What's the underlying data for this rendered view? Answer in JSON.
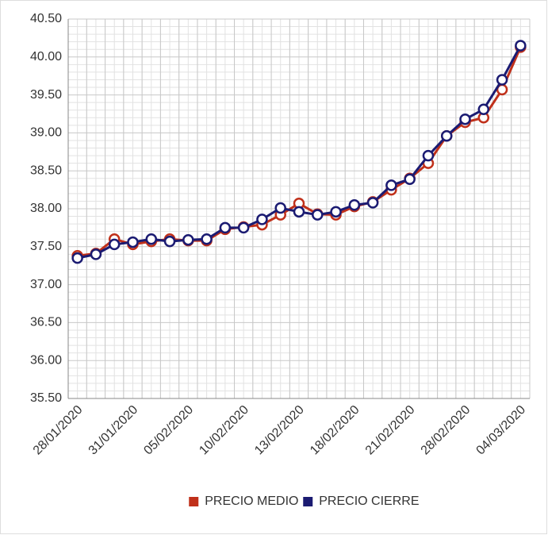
{
  "chart_data": {
    "type": "line",
    "categories": [
      "28/01/2020",
      null,
      null,
      "31/01/2020",
      null,
      null,
      "05/02/2020",
      null,
      null,
      "10/02/2020",
      null,
      null,
      "13/02/2020",
      null,
      null,
      "18/02/2020",
      null,
      null,
      "21/02/2020",
      null,
      null,
      "28/02/2020",
      null,
      null,
      "04/03/2020"
    ],
    "series": [
      {
        "name": "PRECIO MEDIO",
        "color": "#c0301a",
        "values": [
          37.38,
          37.41,
          37.6,
          37.53,
          37.57,
          37.6,
          37.58,
          37.58,
          37.73,
          37.76,
          37.79,
          37.92,
          38.07,
          37.93,
          37.92,
          38.03,
          38.09,
          38.25,
          38.4,
          38.6,
          38.96,
          39.14,
          39.2,
          39.57,
          40.13
        ]
      },
      {
        "name": "PRECIO CIERRE",
        "color": "#1b1b72",
        "values": [
          37.35,
          37.4,
          37.53,
          37.56,
          37.6,
          37.57,
          37.59,
          37.6,
          37.75,
          37.75,
          37.86,
          38.01,
          37.96,
          37.92,
          37.96,
          38.05,
          38.08,
          38.31,
          38.39,
          38.7,
          38.96,
          39.18,
          39.31,
          39.7,
          40.15
        ]
      }
    ],
    "ylim": [
      35.5,
      40.5
    ],
    "yticks": [
      {
        "value": 35.5,
        "label": "35.50"
      },
      {
        "value": 36,
        "label": "36.00"
      },
      {
        "value": 36.5,
        "label": "36.50"
      },
      {
        "value": 37,
        "label": "37.00"
      },
      {
        "value": 37.5,
        "label": "37.50"
      },
      {
        "value": 38,
        "label": "38.00"
      },
      {
        "value": 38.5,
        "label": "38.50"
      },
      {
        "value": 39,
        "label": "39.00"
      },
      {
        "value": 39.5,
        "label": "39.50"
      },
      {
        "value": 40,
        "label": "40.00"
      },
      {
        "value": 40.5,
        "label": "40.50"
      }
    ],
    "grid": true,
    "legend": "bottom"
  }
}
